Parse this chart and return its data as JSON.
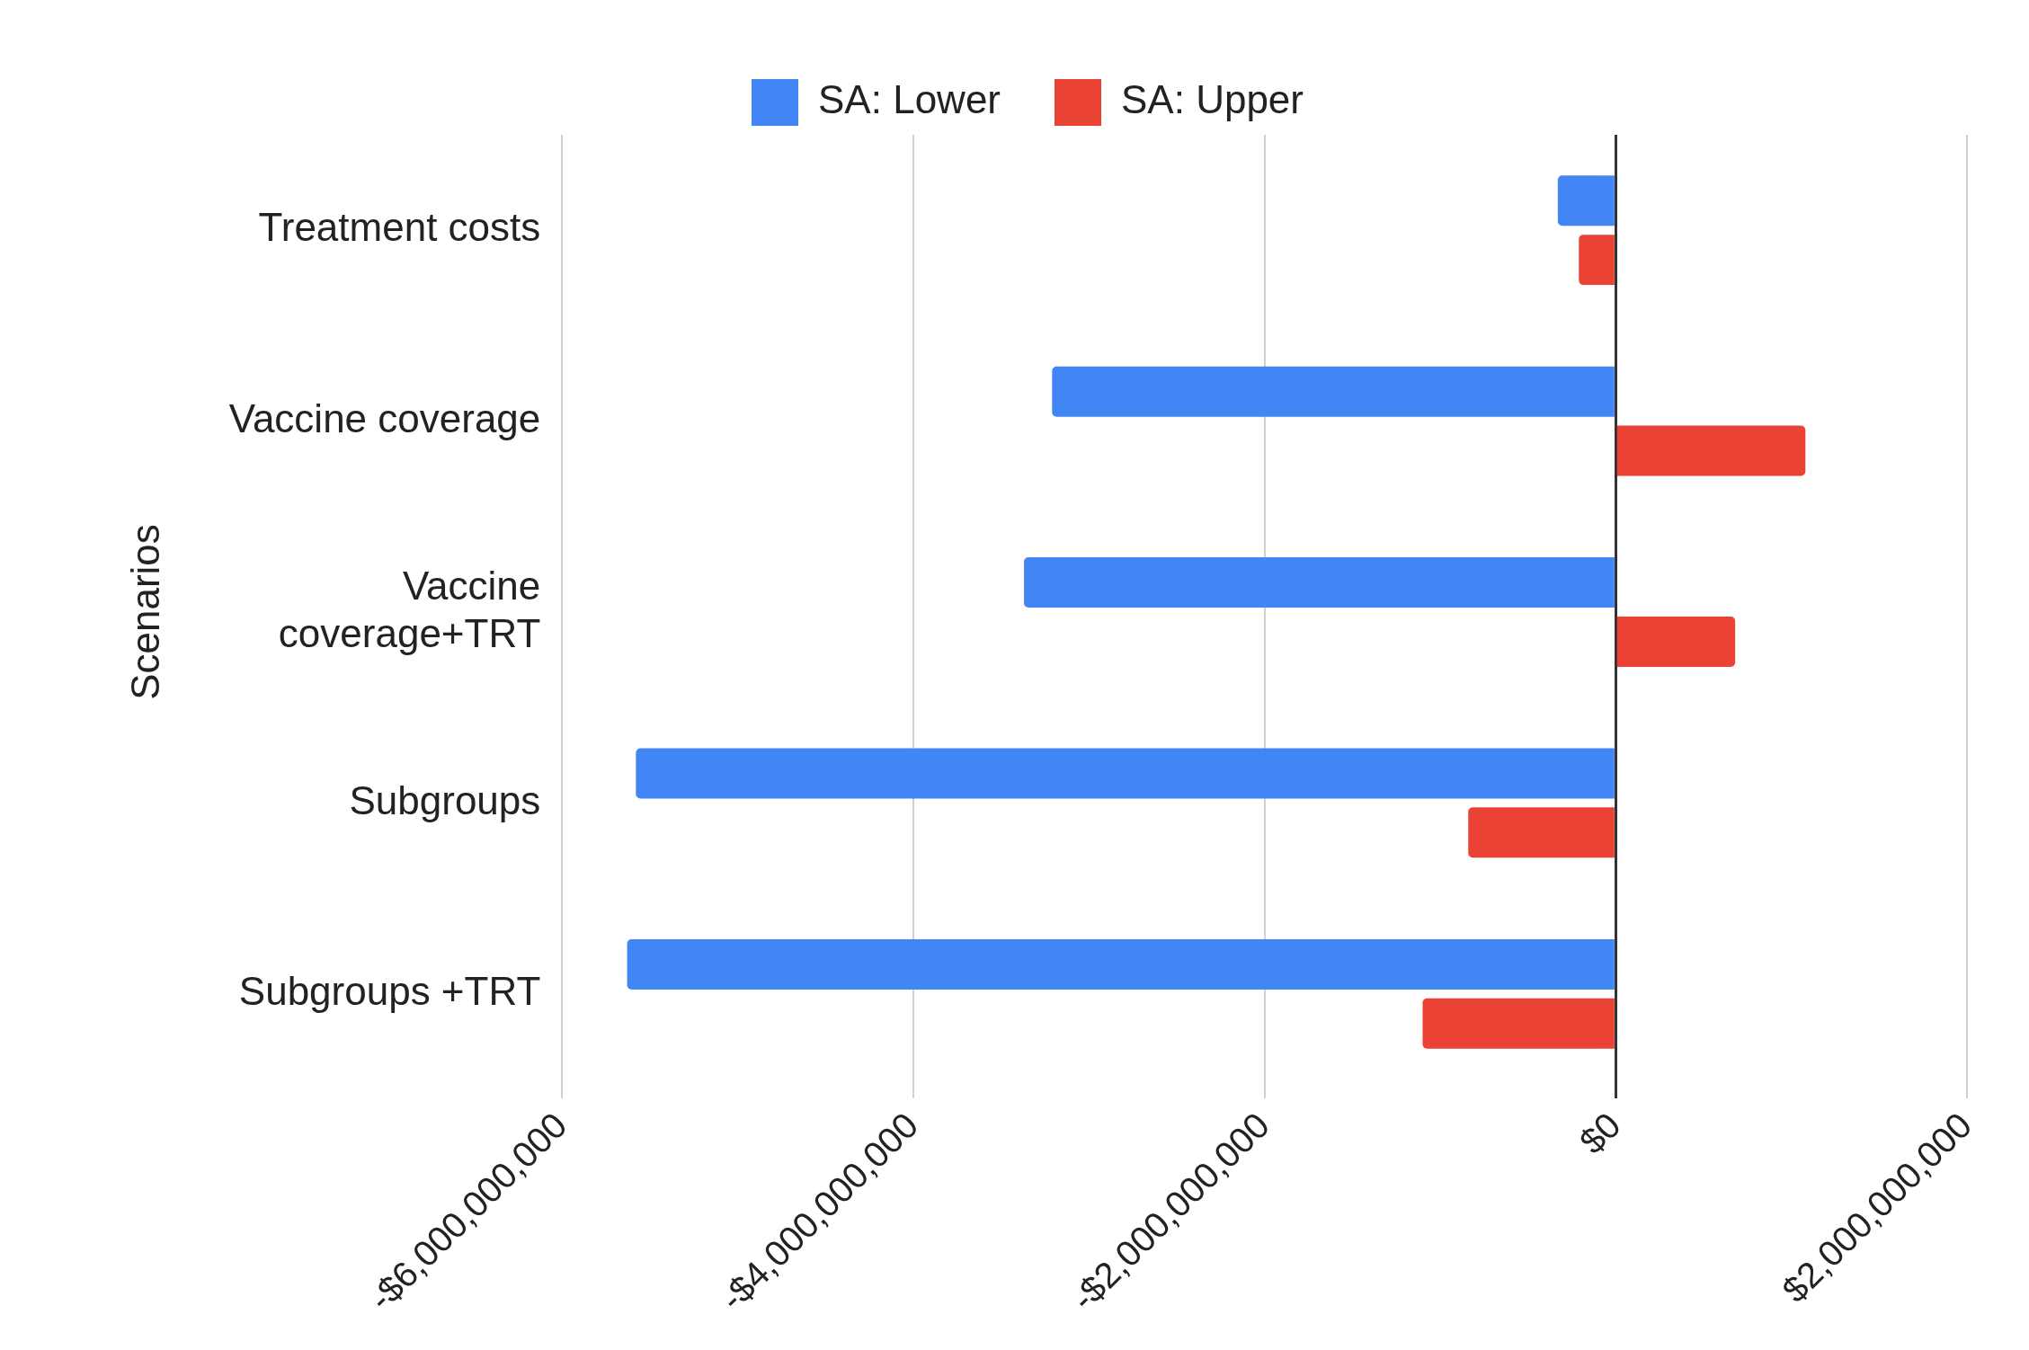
{
  "chart_data": {
    "type": "bar",
    "orientation": "horizontal",
    "ylabel": "Scenarios",
    "categories": [
      "Treatment costs",
      "Vaccine coverage",
      "Vaccine coverage+TRT",
      "Subgroups",
      "Subgroups +TRT"
    ],
    "series": [
      {
        "name": "SA: Lower",
        "color": "#4285f4",
        "values": [
          -330000000,
          -3210000000,
          -3370000000,
          -5580000000,
          -5630000000
        ]
      },
      {
        "name": "SA: Upper",
        "color": "#ea4335",
        "values": [
          -210000000,
          1080000000,
          680000000,
          -840000000,
          -1100000000
        ]
      }
    ],
    "xlim": [
      -6000000000,
      2000000000
    ],
    "xticks": [
      {
        "value": -6000000000,
        "label": "-$6,000,000,000"
      },
      {
        "value": -4000000000,
        "label": "-$4,000,000,000"
      },
      {
        "value": -2000000000,
        "label": "-$2,000,000,000"
      },
      {
        "value": 0,
        "label": "$0"
      },
      {
        "value": 2000000000,
        "label": "$2,000,000,000"
      }
    ],
    "grid": "x",
    "legend": "top"
  }
}
